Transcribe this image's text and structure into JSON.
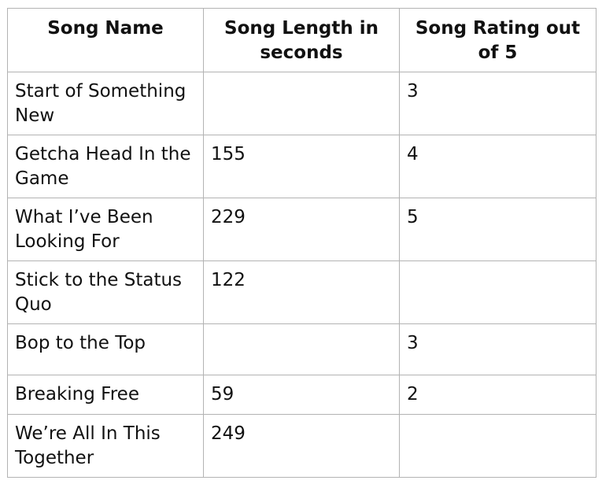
{
  "table": {
    "headers": [
      "Song Name",
      "Song Length in seconds",
      "Song Rating out of 5"
    ],
    "rows": [
      [
        "Start of Something New",
        "",
        "3"
      ],
      [
        "Getcha Head In the Game",
        "155",
        "4"
      ],
      [
        "What I’ve Been Looking For",
        "229",
        "5"
      ],
      [
        "Stick to the Status Quo",
        "122",
        ""
      ],
      [
        "Bop to the Top",
        "",
        "3"
      ],
      [
        "Breaking Free",
        "59",
        "2"
      ],
      [
        "We’re All In This Together",
        "249",
        ""
      ]
    ]
  }
}
